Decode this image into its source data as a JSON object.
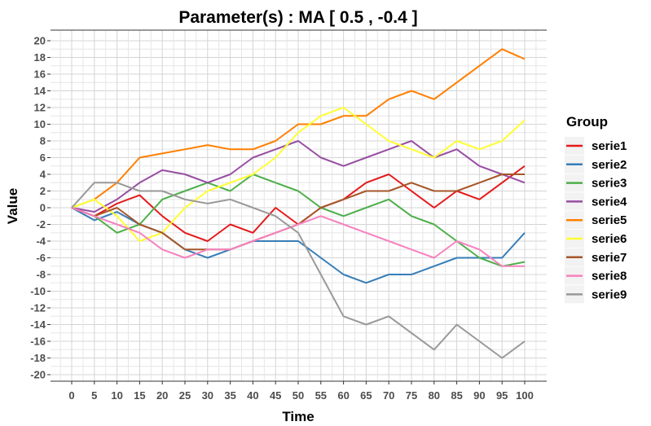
{
  "chart_data": {
    "type": "line",
    "title": "Parameter(s) :  MA [ 0.5 , -0.4 ]",
    "xlabel": "Time",
    "ylabel": "Value",
    "xlim": [
      0,
      100
    ],
    "ylim": [
      -20,
      20
    ],
    "x_ticks": [
      0,
      5,
      10,
      15,
      20,
      25,
      30,
      35,
      40,
      45,
      50,
      55,
      60,
      65,
      70,
      75,
      80,
      85,
      90,
      95,
      100
    ],
    "y_ticks": [
      -20,
      -18,
      -16,
      -14,
      -12,
      -10,
      -8,
      -6,
      -4,
      -2,
      0,
      2,
      4,
      6,
      8,
      10,
      12,
      14,
      16,
      18,
      20
    ],
    "grid": true,
    "legend": {
      "title": "Group",
      "position": "right"
    },
    "series": [
      {
        "name": "serie1",
        "color": "#e41a1c",
        "points": [
          [
            0,
            0
          ],
          [
            5,
            -1
          ],
          [
            10,
            0.5
          ],
          [
            15,
            1.5
          ],
          [
            20,
            -1
          ],
          [
            25,
            -3
          ],
          [
            30,
            -4
          ],
          [
            35,
            -2
          ],
          [
            40,
            -3
          ],
          [
            45,
            0
          ],
          [
            50,
            -2
          ],
          [
            55,
            0
          ],
          [
            60,
            1
          ],
          [
            65,
            3
          ],
          [
            70,
            4
          ],
          [
            75,
            2
          ],
          [
            80,
            0
          ],
          [
            85,
            2
          ],
          [
            90,
            1
          ],
          [
            95,
            3
          ],
          [
            100,
            5
          ]
        ]
      },
      {
        "name": "serie2",
        "color": "#377eb8",
        "points": [
          [
            0,
            0
          ],
          [
            5,
            -1.5
          ],
          [
            10,
            -0.5
          ],
          [
            15,
            -2
          ],
          [
            20,
            -3
          ],
          [
            25,
            -5
          ],
          [
            30,
            -6
          ],
          [
            35,
            -5
          ],
          [
            40,
            -4
          ],
          [
            45,
            -4
          ],
          [
            50,
            -4
          ],
          [
            55,
            -6
          ],
          [
            60,
            -8
          ],
          [
            65,
            -9
          ],
          [
            70,
            -8
          ],
          [
            75,
            -8
          ],
          [
            80,
            -7
          ],
          [
            85,
            -6
          ],
          [
            90,
            -6
          ],
          [
            95,
            -6
          ],
          [
            100,
            -3
          ]
        ]
      },
      {
        "name": "serie3",
        "color": "#4daf4a",
        "points": [
          [
            0,
            0
          ],
          [
            5,
            -1
          ],
          [
            10,
            -3
          ],
          [
            15,
            -2
          ],
          [
            20,
            1
          ],
          [
            25,
            2
          ],
          [
            30,
            3
          ],
          [
            35,
            2
          ],
          [
            40,
            4
          ],
          [
            45,
            3
          ],
          [
            50,
            2
          ],
          [
            55,
            0
          ],
          [
            60,
            -1
          ],
          [
            65,
            0
          ],
          [
            70,
            1
          ],
          [
            75,
            -1
          ],
          [
            80,
            -2
          ],
          [
            85,
            -4
          ],
          [
            90,
            -6
          ],
          [
            95,
            -7
          ],
          [
            100,
            -6.5
          ]
        ]
      },
      {
        "name": "serie4",
        "color": "#984ea3",
        "points": [
          [
            0,
            0
          ],
          [
            5,
            -0.5
          ],
          [
            10,
            1
          ],
          [
            15,
            3
          ],
          [
            20,
            4.5
          ],
          [
            25,
            4
          ],
          [
            30,
            3
          ],
          [
            35,
            4
          ],
          [
            40,
            6
          ],
          [
            45,
            7
          ],
          [
            50,
            8
          ],
          [
            55,
            6
          ],
          [
            60,
            5
          ],
          [
            65,
            6
          ],
          [
            70,
            7
          ],
          [
            75,
            8
          ],
          [
            80,
            6
          ],
          [
            85,
            7
          ],
          [
            90,
            5
          ],
          [
            95,
            4
          ],
          [
            100,
            3
          ]
        ]
      },
      {
        "name": "serie5",
        "color": "#ff7f00",
        "points": [
          [
            0,
            0
          ],
          [
            5,
            1
          ],
          [
            10,
            3
          ],
          [
            15,
            6
          ],
          [
            20,
            6.5
          ],
          [
            25,
            7
          ],
          [
            30,
            7.5
          ],
          [
            35,
            7
          ],
          [
            40,
            7
          ],
          [
            45,
            8
          ],
          [
            50,
            10
          ],
          [
            55,
            10
          ],
          [
            60,
            11
          ],
          [
            65,
            11
          ],
          [
            70,
            13
          ],
          [
            75,
            14
          ],
          [
            80,
            13
          ],
          [
            85,
            15
          ],
          [
            90,
            17
          ],
          [
            95,
            19
          ],
          [
            100,
            17.8
          ]
        ]
      },
      {
        "name": "serie6",
        "color": "#ffff33",
        "points": [
          [
            0,
            0
          ],
          [
            5,
            1
          ],
          [
            10,
            -1
          ],
          [
            15,
            -4
          ],
          [
            20,
            -3
          ],
          [
            25,
            0
          ],
          [
            30,
            2
          ],
          [
            35,
            3
          ],
          [
            40,
            4
          ],
          [
            45,
            6
          ],
          [
            50,
            9
          ],
          [
            55,
            11
          ],
          [
            60,
            12
          ],
          [
            65,
            10
          ],
          [
            70,
            8
          ],
          [
            75,
            7
          ],
          [
            80,
            6
          ],
          [
            85,
            8
          ],
          [
            90,
            7
          ],
          [
            95,
            8
          ],
          [
            100,
            10.5
          ]
        ]
      },
      {
        "name": "serie7",
        "color": "#a65628",
        "points": [
          [
            0,
            0
          ],
          [
            5,
            -1
          ],
          [
            10,
            0
          ],
          [
            15,
            -2
          ],
          [
            20,
            -3
          ],
          [
            25,
            -5
          ],
          [
            30,
            -5
          ],
          [
            35,
            -5
          ],
          [
            40,
            -4
          ],
          [
            45,
            -3
          ],
          [
            50,
            -2
          ],
          [
            55,
            0
          ],
          [
            60,
            1
          ],
          [
            65,
            2
          ],
          [
            70,
            2
          ],
          [
            75,
            3
          ],
          [
            80,
            2
          ],
          [
            85,
            2
          ],
          [
            90,
            3
          ],
          [
            95,
            4
          ],
          [
            100,
            4
          ]
        ]
      },
      {
        "name": "serie8",
        "color": "#f781bf",
        "points": [
          [
            0,
            0
          ],
          [
            5,
            -1
          ],
          [
            10,
            -2
          ],
          [
            15,
            -3
          ],
          [
            20,
            -5
          ],
          [
            25,
            -6
          ],
          [
            30,
            -5
          ],
          [
            35,
            -5
          ],
          [
            40,
            -4
          ],
          [
            45,
            -3
          ],
          [
            50,
            -2
          ],
          [
            55,
            -1
          ],
          [
            60,
            -2
          ],
          [
            65,
            -3
          ],
          [
            70,
            -4
          ],
          [
            75,
            -5
          ],
          [
            80,
            -6
          ],
          [
            85,
            -4
          ],
          [
            90,
            -5
          ],
          [
            95,
            -7
          ],
          [
            100,
            -7
          ]
        ]
      },
      {
        "name": "serie9",
        "color": "#999999",
        "points": [
          [
            0,
            0
          ],
          [
            5,
            3
          ],
          [
            10,
            3
          ],
          [
            15,
            2
          ],
          [
            20,
            2
          ],
          [
            25,
            1
          ],
          [
            30,
            0.5
          ],
          [
            35,
            1
          ],
          [
            40,
            0
          ],
          [
            45,
            -1
          ],
          [
            50,
            -3
          ],
          [
            55,
            -8
          ],
          [
            60,
            -13
          ],
          [
            65,
            -14
          ],
          [
            70,
            -13
          ],
          [
            75,
            -15
          ],
          [
            80,
            -17
          ],
          [
            85,
            -14
          ],
          [
            90,
            -16
          ],
          [
            95,
            -18
          ],
          [
            100,
            -16
          ]
        ]
      }
    ]
  }
}
